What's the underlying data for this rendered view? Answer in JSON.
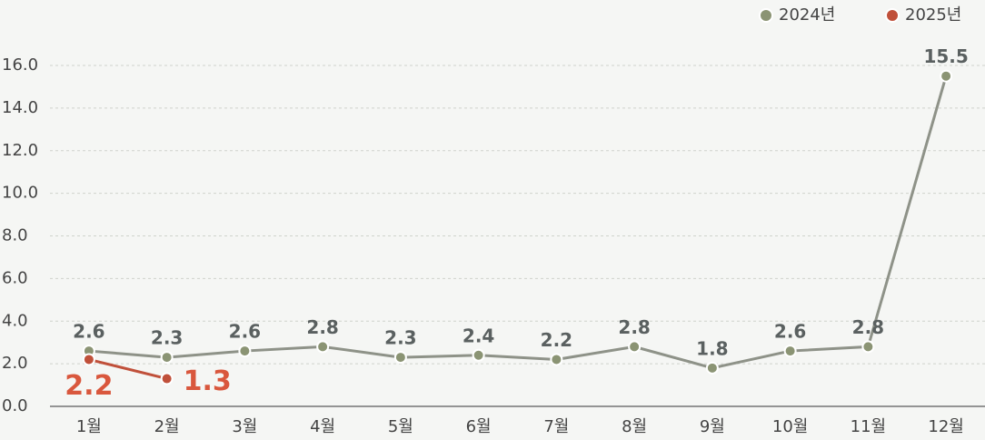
{
  "chart_data": {
    "type": "line",
    "categories": [
      "1월",
      "2월",
      "3월",
      "4월",
      "5월",
      "6월",
      "7월",
      "8월",
      "9월",
      "10월",
      "11월",
      "12월"
    ],
    "series": [
      {
        "name": "2024년",
        "color": "#8b9474",
        "values": [
          2.6,
          2.3,
          2.6,
          2.8,
          2.3,
          2.4,
          2.2,
          2.8,
          1.8,
          2.6,
          2.8,
          15.5
        ]
      },
      {
        "name": "2025년",
        "color": "#c0503a",
        "values": [
          2.2,
          1.3,
          null,
          null,
          null,
          null,
          null,
          null,
          null,
          null,
          null,
          null
        ]
      }
    ],
    "ylim": [
      0,
      16
    ],
    "yticks": [
      {
        "value": 0,
        "label": "0.0"
      },
      {
        "value": 2,
        "label": "2.0"
      },
      {
        "value": 4,
        "label": "4.0"
      },
      {
        "value": 6,
        "label": "6.0"
      },
      {
        "value": 8,
        "label": "8.0"
      },
      {
        "value": 10,
        "label": "10.0"
      },
      {
        "value": 12,
        "label": "12.0"
      },
      {
        "value": 14,
        "label": "14.0"
      },
      {
        "value": 16,
        "label": "16.0"
      }
    ],
    "grid": true,
    "legend": "top-right"
  }
}
